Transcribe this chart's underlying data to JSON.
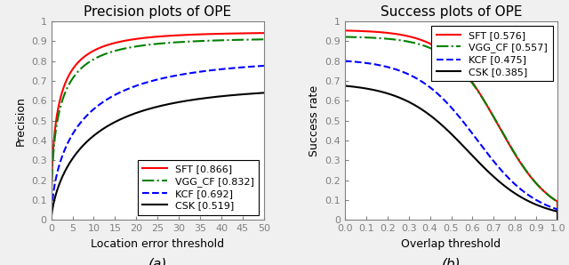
{
  "left_title": "Precision plots of OPE",
  "right_title": "Success plots of OPE",
  "left_xlabel": "Location error threshold",
  "left_ylabel": "Precision",
  "right_xlabel": "Overlap threshold",
  "right_ylabel": "Success rate",
  "left_xlim": [
    0,
    50
  ],
  "left_ylim": [
    0,
    1.0
  ],
  "right_xlim": [
    0,
    1.0
  ],
  "right_ylim": [
    0,
    1.0
  ],
  "left_xticks": [
    0,
    5,
    10,
    15,
    20,
    25,
    30,
    35,
    40,
    45,
    50
  ],
  "left_yticks": [
    0,
    0.1,
    0.2,
    0.3,
    0.4,
    0.5,
    0.6,
    0.7,
    0.8,
    0.9,
    1
  ],
  "right_xticks": [
    0,
    0.1,
    0.2,
    0.3,
    0.4,
    0.5,
    0.6,
    0.7,
    0.8,
    0.9,
    1
  ],
  "right_yticks": [
    0,
    0.1,
    0.2,
    0.3,
    0.4,
    0.5,
    0.6,
    0.7,
    0.8,
    0.9,
    1
  ],
  "label_a": "(a)",
  "label_b": "(b)",
  "legend_left": [
    {
      "label": "SFT [0.866]",
      "color": "red",
      "linestyle": "-"
    },
    {
      "label": "VGG_CF [0.832]",
      "color": "green",
      "linestyle": "-."
    },
    {
      "label": "KCF [0.692]",
      "color": "blue",
      "linestyle": "--"
    },
    {
      "label": "CSK [0.519]",
      "color": "black",
      "linestyle": "-"
    }
  ],
  "legend_right": [
    {
      "label": "SFT [0.576]",
      "color": "red",
      "linestyle": "-"
    },
    {
      "label": "VGG_CF [0.557]",
      "color": "green",
      "linestyle": "-."
    },
    {
      "label": "KCF [0.475]",
      "color": "blue",
      "linestyle": "--"
    },
    {
      "label": "CSK [0.385]",
      "color": "black",
      "linestyle": "-"
    }
  ],
  "tick_color": "#808080",
  "spine_color": "#808080",
  "bg_color": "#f0f0f0",
  "plot_bg": "white",
  "title_fontsize": 11,
  "label_fontsize": 9,
  "tick_fontsize": 8,
  "legend_fontsize": 8,
  "linewidth": 1.5
}
